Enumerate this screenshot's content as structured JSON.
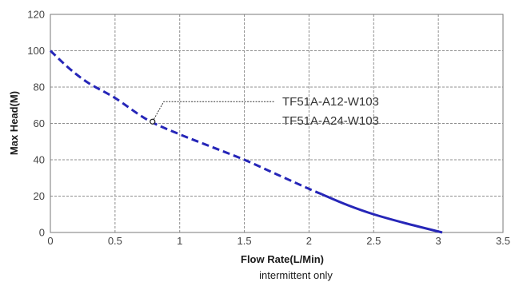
{
  "chart_data": {
    "type": "line",
    "title": "",
    "xlabel": "Flow Rate(L/Min)",
    "ylabel": "Max Head(M)",
    "note": "intermittent only",
    "xlim": [
      0,
      3.5
    ],
    "ylim": [
      0,
      120
    ],
    "x_ticks": [
      0,
      0.5,
      1,
      1.5,
      2,
      2.5,
      3,
      3.5
    ],
    "x_tick_labels": [
      "0",
      "0.5",
      "1",
      "1.5",
      "2",
      "2.5",
      "3",
      "3.5"
    ],
    "y_ticks": [
      0,
      20,
      40,
      60,
      80,
      100,
      120
    ],
    "y_tick_labels": [
      "0",
      "20",
      "40",
      "60",
      "80",
      "100",
      "120"
    ],
    "grid": true,
    "series": [
      {
        "name": "TF51A-A12-W103",
        "color": "#2626b8",
        "x": [
          0,
          0.15,
          0.3,
          0.5,
          0.75,
          1.0,
          1.25,
          1.5,
          1.75,
          2.0,
          2.1,
          2.3,
          2.5,
          2.75,
          3.03
        ],
        "y": [
          100,
          90,
          82,
          74,
          62,
          54,
          47,
          40,
          32,
          24,
          21,
          15,
          10,
          5,
          0
        ],
        "segments": [
          {
            "style": "dashed",
            "x_range": [
              0,
              2.1
            ]
          },
          {
            "style": "solid",
            "x_range": [
              2.1,
              3.03
            ]
          }
        ]
      },
      {
        "name": "TF51A-A24-W103"
      }
    ],
    "marker_point": {
      "x": 0.79,
      "y": 61
    }
  }
}
